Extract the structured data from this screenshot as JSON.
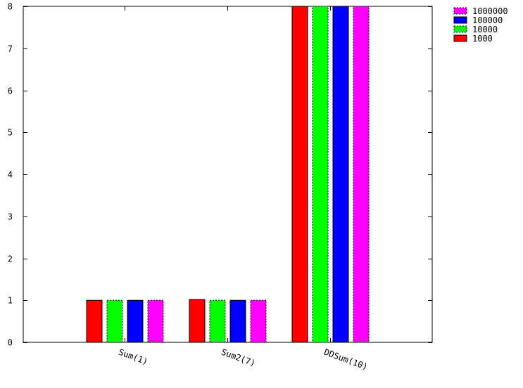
{
  "chart_data": {
    "type": "bar",
    "title": "",
    "xlabel": "",
    "ylabel": "",
    "ylim": [
      0,
      8
    ],
    "yticks": [
      0,
      1,
      2,
      3,
      4,
      5,
      6,
      7,
      8
    ],
    "categories": [
      "Sum(1)",
      "Sum2(7)",
      "DDSum(10)"
    ],
    "series": [
      {
        "name": "1000",
        "color": "#ff0000",
        "dashed": false,
        "values": [
          1.0,
          1.02,
          8
        ]
      },
      {
        "name": "10000",
        "color": "#00ff00",
        "dashed": true,
        "values": [
          1.0,
          1.0,
          8
        ]
      },
      {
        "name": "100000",
        "color": "#0000ff",
        "dashed": false,
        "values": [
          1.0,
          1.0,
          8
        ]
      },
      {
        "name": "1000000",
        "color": "#ff00ff",
        "dashed": true,
        "values": [
          1.0,
          1.0,
          8
        ]
      }
    ],
    "legend_order": [
      "1000000",
      "100000",
      "10000",
      "1000"
    ],
    "legend_position": "top-right-outside",
    "grid": false
  }
}
